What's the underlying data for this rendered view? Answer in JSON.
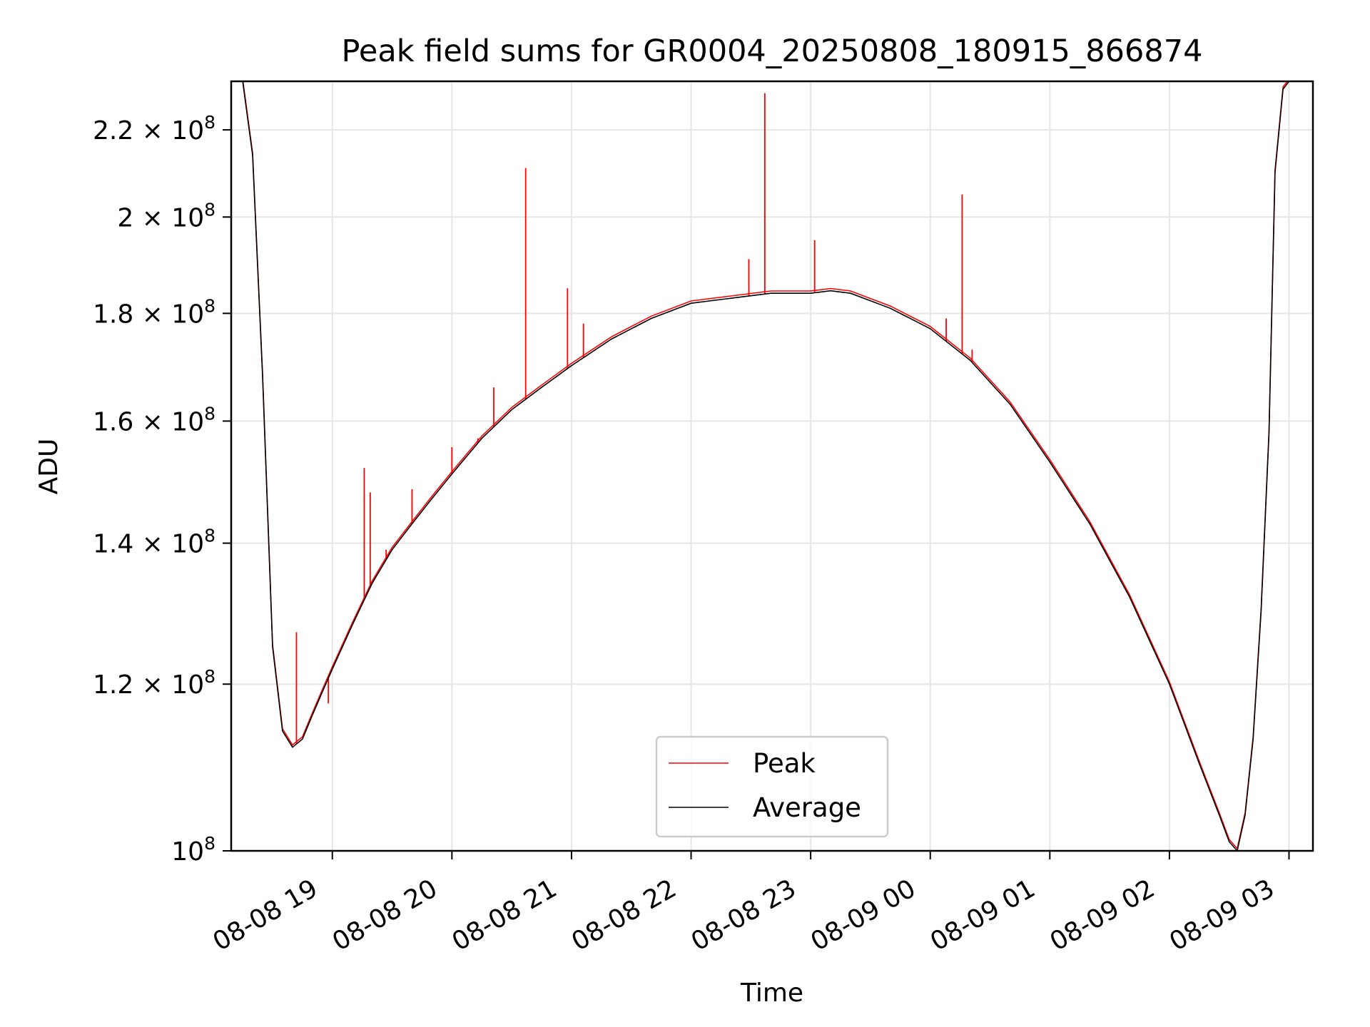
{
  "chart_data": {
    "type": "line",
    "title": "Peak field sums for GR0004_20250808_180915_866874",
    "xlabel": "Time",
    "ylabel": "ADU",
    "yscale": "log",
    "ylim": [
      100000000,
      232000000
    ],
    "xlim": [
      "2025-08-08 18:09:15",
      "2025-08-09 03:12:00"
    ],
    "grid": true,
    "legend_placement": "lower center",
    "x_ticks": [
      {
        "value": "2025-08-08 19:00",
        "label": "08-08 19"
      },
      {
        "value": "2025-08-08 20:00",
        "label": "08-08 20"
      },
      {
        "value": "2025-08-08 21:00",
        "label": "08-08 21"
      },
      {
        "value": "2025-08-08 22:00",
        "label": "08-08 22"
      },
      {
        "value": "2025-08-08 23:00",
        "label": "08-08 23"
      },
      {
        "value": "2025-08-09 00:00",
        "label": "08-09 00"
      },
      {
        "value": "2025-08-09 01:00",
        "label": "08-09 01"
      },
      {
        "value": "2025-08-09 02:00",
        "label": "08-09 02"
      },
      {
        "value": "2025-08-09 03:00",
        "label": "08-09 03"
      }
    ],
    "y_ticks": [
      {
        "value": 100000000,
        "mantissa": "",
        "exponent": "8"
      },
      {
        "value": 120000000,
        "mantissa": "1.2",
        "exponent": "8"
      },
      {
        "value": 140000000,
        "mantissa": "1.4",
        "exponent": "8"
      },
      {
        "value": 160000000,
        "mantissa": "1.6",
        "exponent": "8"
      },
      {
        "value": 180000000,
        "mantissa": "1.8",
        "exponent": "8"
      },
      {
        "value": 200000000,
        "mantissa": "2",
        "exponent": "8"
      },
      {
        "value": 220000000,
        "mantissa": "2.2",
        "exponent": "8"
      }
    ],
    "series": [
      {
        "name": "Average",
        "color": "#000000",
        "x": [
          "2025-08-08 18:09:15",
          "2025-08-08 18:15",
          "2025-08-08 18:20",
          "2025-08-08 18:25",
          "2025-08-08 18:30",
          "2025-08-08 18:35",
          "2025-08-08 18:40",
          "2025-08-08 18:45",
          "2025-08-08 18:50",
          "2025-08-08 18:55",
          "2025-08-08 19:00",
          "2025-08-08 19:10",
          "2025-08-08 19:20",
          "2025-08-08 19:30",
          "2025-08-08 19:40",
          "2025-08-08 19:50",
          "2025-08-08 20:00",
          "2025-08-08 20:15",
          "2025-08-08 20:30",
          "2025-08-08 20:45",
          "2025-08-08 21:00",
          "2025-08-08 21:20",
          "2025-08-08 21:40",
          "2025-08-08 22:00",
          "2025-08-08 22:20",
          "2025-08-08 22:40",
          "2025-08-08 23:00",
          "2025-08-08 23:10",
          "2025-08-08 23:20",
          "2025-08-08 23:40",
          "2025-08-09 00:00",
          "2025-08-09 00:20",
          "2025-08-09 00:40",
          "2025-08-09 01:00",
          "2025-08-09 01:20",
          "2025-08-09 01:40",
          "2025-08-09 02:00",
          "2025-08-09 02:15",
          "2025-08-09 02:25",
          "2025-08-09 02:30",
          "2025-08-09 02:34",
          "2025-08-09 02:38",
          "2025-08-09 02:42",
          "2025-08-09 02:46",
          "2025-08-09 02:50",
          "2025-08-09 02:53",
          "2025-08-09 02:57",
          "2025-08-09 03:00"
        ],
        "values": [
          232000000,
          232000000,
          214000000,
          168000000,
          125000000,
          114000000,
          112000000,
          113000000,
          116000000,
          119000000,
          122000000,
          128000000,
          134000000,
          139000000,
          143000000,
          147000000,
          151000000,
          157000000,
          162000000,
          166000000,
          170000000,
          175000000,
          179000000,
          182000000,
          183000000,
          184000000,
          184000000,
          184500000,
          184000000,
          181000000,
          177000000,
          171000000,
          163000000,
          153000000,
          143000000,
          132000000,
          120000000,
          110000000,
          104000000,
          101000000,
          100000000,
          104000000,
          113000000,
          130000000,
          158000000,
          210000000,
          230000000,
          232000000
        ]
      },
      {
        "name": "Peak",
        "color": "#ff0000",
        "spikes": [
          {
            "x": "2025-08-08 18:42",
            "value": 127000000
          },
          {
            "x": "2025-08-08 18:58",
            "value": 117500000
          },
          {
            "x": "2025-08-08 19:16",
            "value": 152000000
          },
          {
            "x": "2025-08-08 19:19",
            "value": 148000000
          },
          {
            "x": "2025-08-08 19:27",
            "value": 139000000
          },
          {
            "x": "2025-08-08 19:40",
            "value": 148500000
          },
          {
            "x": "2025-08-08 20:00",
            "value": 155500000
          },
          {
            "x": "2025-08-08 20:13",
            "value": 157000000
          },
          {
            "x": "2025-08-08 20:21",
            "value": 166000000
          },
          {
            "x": "2025-08-08 20:37",
            "value": 211000000
          },
          {
            "x": "2025-08-08 20:58",
            "value": 185000000
          },
          {
            "x": "2025-08-08 21:06",
            "value": 178000000
          },
          {
            "x": "2025-08-08 22:29",
            "value": 191000000
          },
          {
            "x": "2025-08-08 22:37",
            "value": 229000000
          },
          {
            "x": "2025-08-08 23:02",
            "value": 195000000
          },
          {
            "x": "2025-08-09 00:08",
            "value": 179000000
          },
          {
            "x": "2025-08-09 00:16",
            "value": 205000000
          },
          {
            "x": "2025-08-09 00:21",
            "value": 173000000
          }
        ]
      }
    ]
  }
}
